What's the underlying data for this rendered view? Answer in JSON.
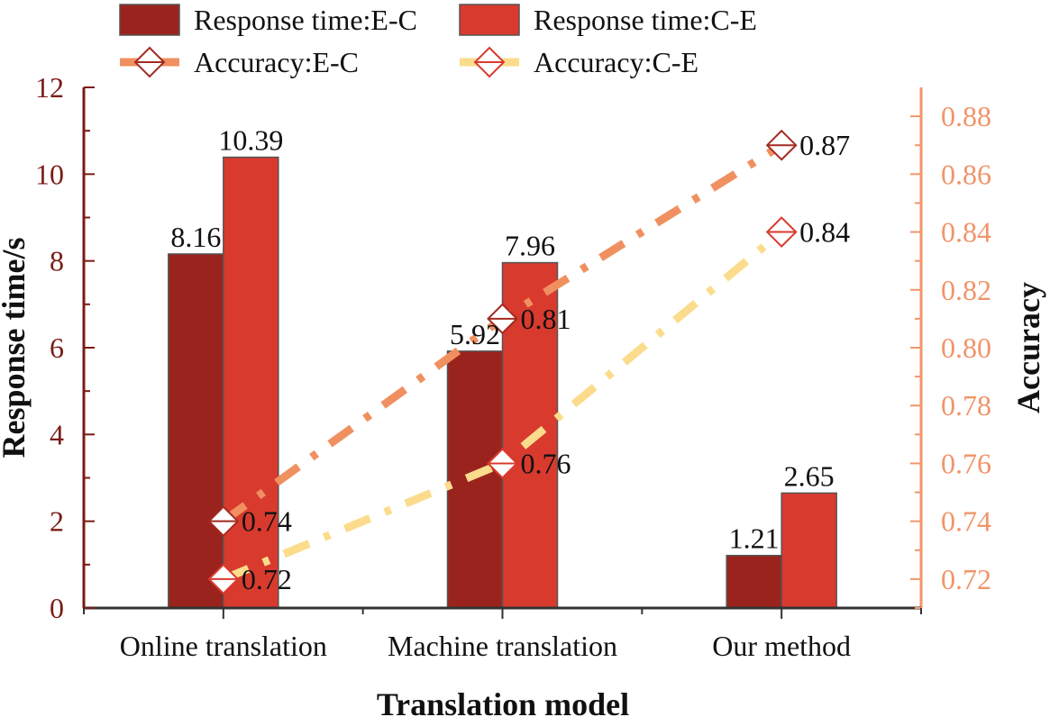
{
  "chart_data": {
    "type": "bar",
    "categories": [
      "Online translation",
      "Machine translation",
      "Our method"
    ],
    "xlabel": "Translation model",
    "ylabel": "Response time/s",
    "y2label": "Accuracy",
    "ylim": [
      0,
      12
    ],
    "y2lim": [
      0.71,
      0.89
    ],
    "yticks": [
      "0",
      "2",
      "4",
      "6",
      "8",
      "10",
      "12"
    ],
    "y2ticks": [
      "0.72",
      "0.74",
      "0.76",
      "0.78",
      "0.80",
      "0.82",
      "0.84",
      "0.86",
      "0.88"
    ],
    "legend_placement": "top",
    "series": [
      {
        "name": "Response time:E-C",
        "kind": "bar",
        "axis": "left",
        "color": "#9b231e",
        "values": [
          8.16,
          5.92,
          1.21
        ],
        "labels": [
          "8.16",
          "5.92",
          "1.21"
        ]
      },
      {
        "name": "Response time:C-E",
        "kind": "bar",
        "axis": "left",
        "color": "#d93a2e",
        "values": [
          10.39,
          7.96,
          2.65
        ],
        "labels": [
          "10.39",
          "7.96",
          "2.65"
        ]
      },
      {
        "name": "Accuracy:E-C",
        "kind": "line",
        "axis": "right",
        "line_color": "#f09060",
        "marker_color": "#a32a22",
        "values": [
          0.74,
          0.81,
          0.87
        ],
        "labels": [
          "0.74",
          "0.81",
          "0.87"
        ]
      },
      {
        "name": "Accuracy:C-E",
        "kind": "line",
        "axis": "right",
        "line_color": "#fbdc8c",
        "marker_color": "#d93a2e",
        "values": [
          0.72,
          0.76,
          0.84
        ],
        "labels": [
          "0.72",
          "0.76",
          "0.84"
        ]
      }
    ]
  }
}
